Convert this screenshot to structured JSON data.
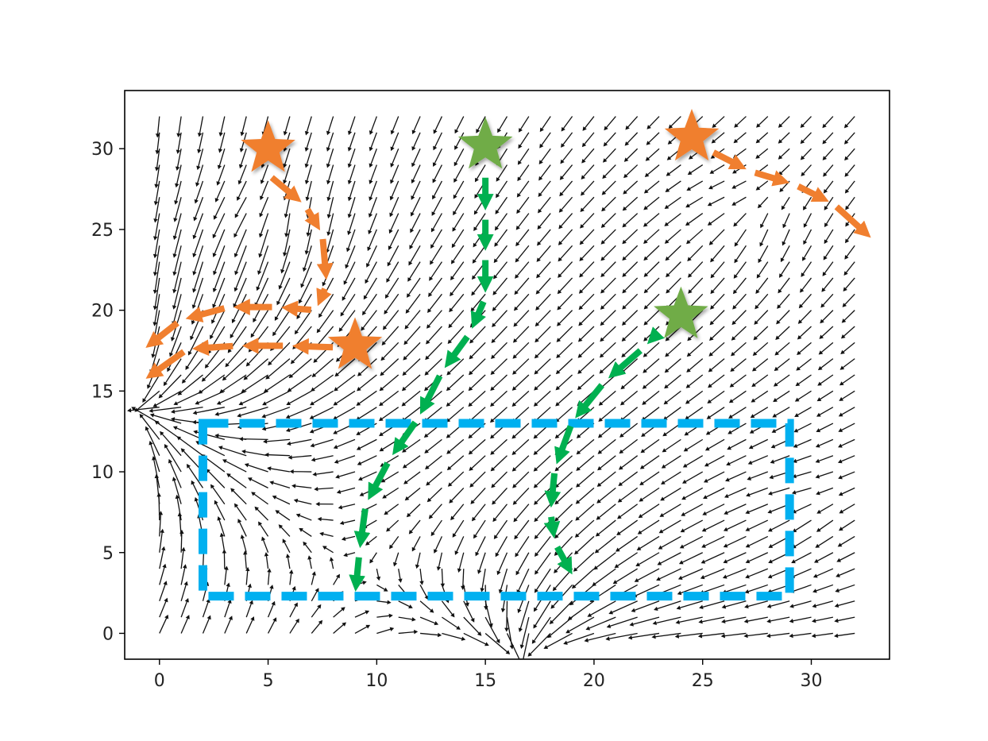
{
  "chart_data": {
    "type": "quiver",
    "title": "",
    "xlabel": "",
    "ylabel": "",
    "xlim": [
      -1.6,
      33.6
    ],
    "ylim": [
      -1.6,
      33.6
    ],
    "xticks": [
      0,
      5,
      10,
      15,
      20,
      25,
      30
    ],
    "yticks": [
      0,
      5,
      10,
      15,
      20,
      25,
      30
    ],
    "grid": false,
    "legend": "none",
    "vector_field": {
      "x_range": [
        0,
        32
      ],
      "y_range": [
        0,
        32
      ],
      "step": 1,
      "color": "#111111",
      "sources": [
        {
          "x": 5,
          "y": 26,
          "strength": 1.2
        },
        {
          "x": 27,
          "y": 26,
          "strength": 1.0
        },
        {
          "x": 30,
          "y": 8,
          "strength": 0.8
        }
      ],
      "sinks": [
        {
          "x": -1.5,
          "y": 14,
          "strength": 2.5
        },
        {
          "x": 17,
          "y": -1.5,
          "strength": 1.6
        }
      ]
    },
    "annotations": {
      "star_size": 36,
      "orange_stars": [
        {
          "x": 5,
          "y": 30
        },
        {
          "x": 9,
          "y": 17.8
        },
        {
          "x": 24.5,
          "y": 30.7
        }
      ],
      "green_stars": [
        {
          "x": 15,
          "y": 30.2
        },
        {
          "x": 24,
          "y": 19.7
        }
      ],
      "orange_color": "#f07f2f",
      "green_color": "#00b050",
      "star_green_fill": "#6fac46",
      "box_color": "#00b0f0",
      "dashed_box": {
        "x0": 2,
        "x1": 29,
        "y0": 2.3,
        "y1": 13
      },
      "orange_paths": [
        [
          [
            5,
            28.4
          ],
          [
            6.7,
            26.5
          ],
          [
            7.5,
            24.7
          ],
          [
            7.7,
            21.6
          ],
          [
            7.2,
            20
          ],
          [
            5.4,
            20.2
          ],
          [
            3.2,
            20.2
          ],
          [
            1,
            19.4
          ],
          [
            -0.8,
            17.5
          ]
        ],
        [
          [
            8.2,
            17.7
          ],
          [
            5.9,
            17.8
          ],
          [
            3.6,
            17.8
          ],
          [
            1.3,
            17.6
          ],
          [
            -0.8,
            15.6
          ]
        ],
        [
          [
            25.3,
            29.9
          ],
          [
            27.2,
            28.6
          ],
          [
            29.2,
            27.8
          ],
          [
            31,
            26.6
          ],
          [
            32.9,
            24.3
          ]
        ]
      ],
      "green_paths": [
        [
          [
            15,
            28.5
          ],
          [
            15,
            25.9
          ],
          [
            15,
            23.4
          ],
          [
            15,
            20.8
          ],
          [
            14.3,
            18.6
          ],
          [
            13,
            16.2
          ],
          [
            11.9,
            13.3
          ],
          [
            10.6,
            10.8
          ],
          [
            9.5,
            8
          ],
          [
            9.2,
            5
          ],
          [
            9,
            2.3
          ]
        ],
        [
          [
            23.1,
            18.8
          ],
          [
            22.3,
            17.7
          ],
          [
            20.5,
            15.6
          ],
          [
            19,
            13.1
          ],
          [
            18.2,
            10.2
          ],
          [
            18,
            7.5
          ],
          [
            18.2,
            5.6
          ],
          [
            19.1,
            3.4
          ]
        ]
      ]
    }
  }
}
